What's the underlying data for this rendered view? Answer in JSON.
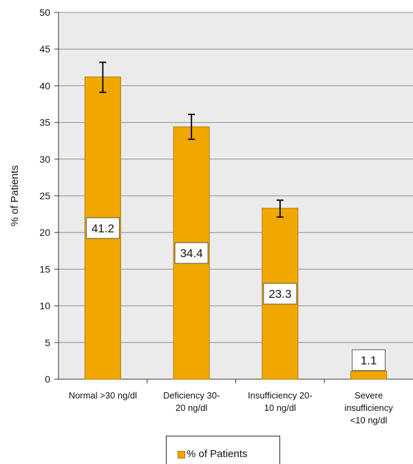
{
  "chart_data": {
    "type": "bar",
    "categories": [
      [
        "Normal >30 ng/dl"
      ],
      [
        "Deficiency 30-",
        "20 ng/dl"
      ],
      [
        "Insufficiency 20-",
        "10 ng/dl"
      ],
      [
        "Severe",
        "insufficiency",
        "<10 ng/dl"
      ]
    ],
    "series": [
      {
        "name": "% of Patients",
        "values": [
          41.2,
          34.4,
          23.3,
          1.1
        ],
        "data_labels": [
          "41.2",
          "34.4",
          "23.3",
          "1.1"
        ],
        "error_low": [
          39.1,
          32.7,
          22.1,
          null
        ],
        "error_high": [
          43.2,
          36.1,
          24.4,
          null
        ],
        "color": "#f0a800",
        "stroke": "#b07800"
      }
    ],
    "ylabel": "% of Patients",
    "xlabel": "",
    "ylim": [
      0,
      50
    ],
    "yticks": [
      0,
      5,
      10,
      15,
      20,
      25,
      30,
      35,
      40,
      45,
      50
    ],
    "grid": true,
    "plot_background": "#ebebeb",
    "legend_position": "bottom"
  },
  "legend": {
    "label": "% of Patients"
  }
}
